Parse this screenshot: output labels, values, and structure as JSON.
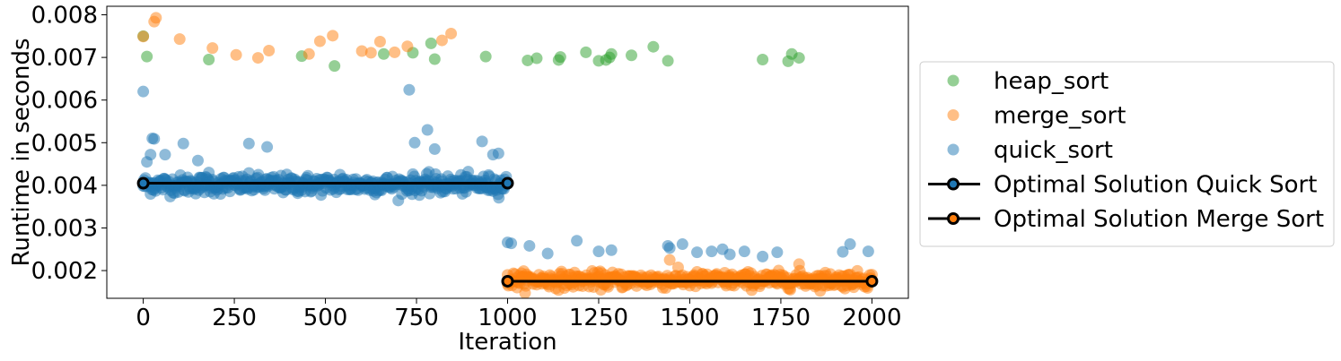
{
  "chart_data": {
    "type": "scatter",
    "title": "",
    "xlabel": "Iteration",
    "ylabel": "Runtime in seconds",
    "xlim": [
      -100,
      2100
    ],
    "ylim": [
      0.00135,
      0.0082
    ],
    "xticks": [
      0,
      250,
      500,
      750,
      1000,
      1250,
      1500,
      1750,
      2000
    ],
    "xtick_labels": [
      "0",
      "250",
      "500",
      "750",
      "1000",
      "1250",
      "1500",
      "1750",
      "2000"
    ],
    "yticks": [
      0.002,
      0.003,
      0.004,
      0.005,
      0.006,
      0.007,
      0.008
    ],
    "ytick_labels": [
      "0.002",
      "0.003",
      "0.004",
      "0.005",
      "0.006",
      "0.007",
      "0.008"
    ],
    "grid": false,
    "legend_position": "outside-right",
    "series": [
      {
        "name": "heap_sort",
        "kind": "scatter",
        "color": "#2ca02c",
        "points": [
          [
            0,
            0.0075
          ],
          [
            10,
            0.00702
          ],
          [
            180,
            0.00695
          ],
          [
            435,
            0.00703
          ],
          [
            525,
            0.0068
          ],
          [
            660,
            0.00708
          ],
          [
            740,
            0.00711
          ],
          [
            790,
            0.00733
          ],
          [
            800,
            0.00696
          ],
          [
            940,
            0.00702
          ],
          [
            1055,
            0.00693
          ],
          [
            1080,
            0.00698
          ],
          [
            1140,
            0.00694
          ],
          [
            1145,
            0.00701
          ],
          [
            1215,
            0.00712
          ],
          [
            1250,
            0.00692
          ],
          [
            1270,
            0.00694
          ],
          [
            1280,
            0.007
          ],
          [
            1285,
            0.00708
          ],
          [
            1340,
            0.00705
          ],
          [
            1400,
            0.00725
          ],
          [
            1440,
            0.00692
          ],
          [
            1700,
            0.00695
          ],
          [
            1770,
            0.00691
          ],
          [
            1780,
            0.00708
          ],
          [
            1800,
            0.00699
          ]
        ]
      },
      {
        "name": "merge_sort",
        "kind": "scatter",
        "color": "#ff7f0e",
        "points": [
          [
            0,
            0.00749
          ],
          [
            30,
            0.00784
          ],
          [
            35,
            0.00793
          ],
          [
            100,
            0.00743
          ],
          [
            190,
            0.00722
          ],
          [
            255,
            0.00706
          ],
          [
            315,
            0.00699
          ],
          [
            345,
            0.00716
          ],
          [
            455,
            0.00708
          ],
          [
            485,
            0.00738
          ],
          [
            520,
            0.00751
          ],
          [
            600,
            0.00715
          ],
          [
            625,
            0.00711
          ],
          [
            650,
            0.00737
          ],
          [
            690,
            0.00712
          ],
          [
            725,
            0.00726
          ],
          [
            820,
            0.0074
          ],
          [
            845,
            0.00756
          ],
          [
            1000,
            0.0019
          ],
          [
            1040,
            0.00185
          ],
          [
            1100,
            0.0018
          ],
          [
            1200,
            0.00178
          ],
          [
            1300,
            0.00182
          ],
          [
            1400,
            0.00185
          ],
          [
            1445,
            0.00225
          ],
          [
            1500,
            0.00178
          ],
          [
            1600,
            0.00182
          ],
          [
            1700,
            0.00176
          ],
          [
            1800,
            0.00215
          ],
          [
            1900,
            0.00182
          ],
          [
            2000,
            0.00178
          ]
        ]
      },
      {
        "name": "quick_sort",
        "kind": "scatter",
        "color": "#1f77b4",
        "points": [
          [
            0,
            0.0062
          ],
          [
            10,
            0.00455
          ],
          [
            20,
            0.00472
          ],
          [
            25,
            0.0051
          ],
          [
            30,
            0.00509
          ],
          [
            60,
            0.00472
          ],
          [
            110,
            0.00498
          ],
          [
            150,
            0.00458
          ],
          [
            180,
            0.0043
          ],
          [
            290,
            0.00498
          ],
          [
            340,
            0.0049
          ],
          [
            540,
            0.00425
          ],
          [
            730,
            0.00624
          ],
          [
            745,
            0.005
          ],
          [
            780,
            0.0053
          ],
          [
            800,
            0.00485
          ],
          [
            930,
            0.00503
          ],
          [
            960,
            0.00472
          ],
          [
            975,
            0.00475
          ],
          [
            1000,
            0.00266
          ],
          [
            1010,
            0.00264
          ],
          [
            1060,
            0.00258
          ],
          [
            1110,
            0.0024
          ],
          [
            1190,
            0.0027
          ],
          [
            1250,
            0.00245
          ],
          [
            1285,
            0.00248
          ],
          [
            1440,
            0.00258
          ],
          [
            1445,
            0.00253
          ],
          [
            1480,
            0.00262
          ],
          [
            1520,
            0.00243
          ],
          [
            1560,
            0.00245
          ],
          [
            1590,
            0.0025
          ],
          [
            1610,
            0.00238
          ],
          [
            1650,
            0.00245
          ],
          [
            1700,
            0.00233
          ],
          [
            1740,
            0.00243
          ],
          [
            1920,
            0.00244
          ],
          [
            1940,
            0.00262
          ],
          [
            1990,
            0.00245
          ]
        ]
      },
      {
        "name": "Optimal Solution Quick Sort",
        "kind": "line",
        "color": "#000000",
        "marker_color": "#1f77b4",
        "points": [
          [
            0,
            0.00405
          ],
          [
            1000,
            0.00405
          ]
        ]
      },
      {
        "name": "Optimal Solution Merge Sort",
        "kind": "line",
        "color": "#000000",
        "marker_color": "#ff7f0e",
        "points": [
          [
            1000,
            0.00175
          ],
          [
            2000,
            0.00175
          ]
        ]
      }
    ],
    "dense_bands": [
      {
        "series": "quick_sort",
        "x_range": [
          0,
          1000
        ],
        "center": 0.00402,
        "spread": 0.00012
      },
      {
        "series": "merge_sort",
        "x_range": [
          1000,
          2000
        ],
        "center": 0.00178,
        "spread": 0.0001
      }
    ]
  }
}
